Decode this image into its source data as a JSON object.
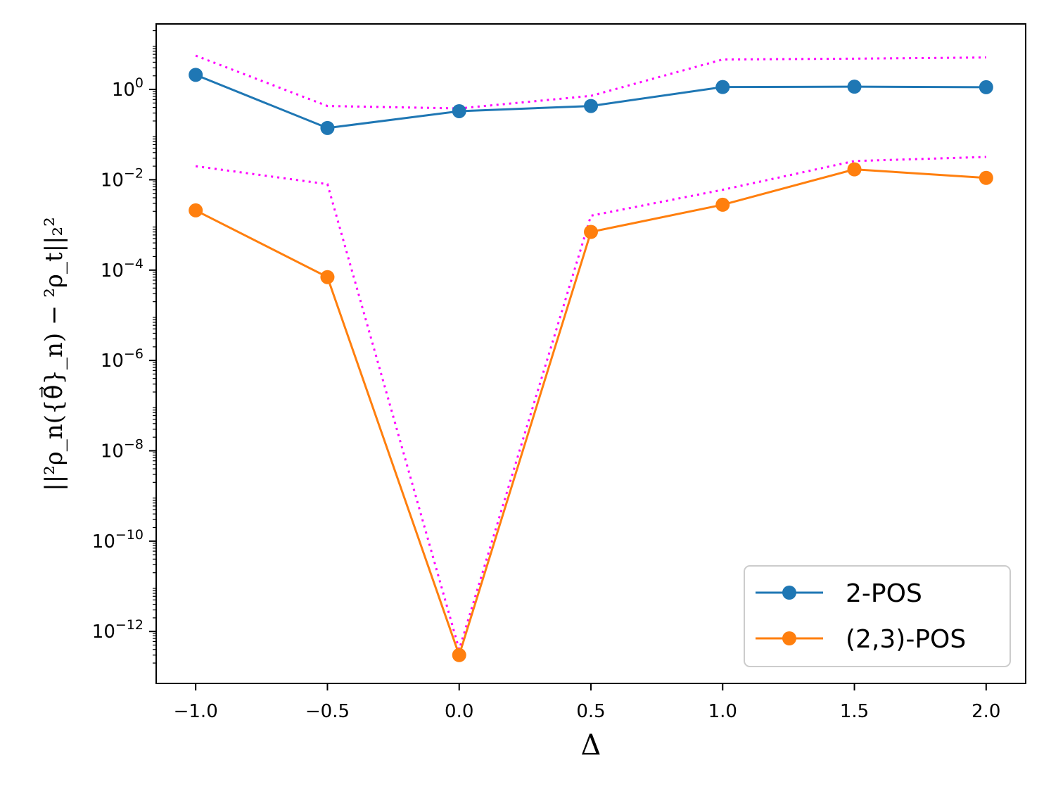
{
  "chart_data": {
    "type": "line",
    "title": "",
    "xlabel": "Δ",
    "ylabel": "||²ρ_n({θ⃗}_n) − ²ρ_t||₂²",
    "yscale": "log",
    "xlim": [
      -1.15,
      2.15
    ],
    "ylim_exp": [
      -13.15,
      1.45
    ],
    "x": [
      -1.0,
      -0.5,
      0.0,
      0.5,
      1.0,
      1.5,
      2.0
    ],
    "xticks": [
      -1.0,
      -0.5,
      0.0,
      0.5,
      1.0,
      1.5,
      2.0
    ],
    "xtick_labels": [
      "−1.0",
      "−0.5",
      "0.0",
      "0.5",
      "1.0",
      "1.5",
      "2.0"
    ],
    "yticks_exp": [
      0,
      -2,
      -4,
      -6,
      -8,
      -10,
      -12
    ],
    "ytick_labels": [
      "10",
      "10",
      "10",
      "10",
      "10",
      "10",
      "10"
    ],
    "ytick_exponents": [
      "0",
      "−2",
      "−4",
      "−6",
      "−8",
      "−10",
      "−12"
    ],
    "series": [
      {
        "name": "2-POS",
        "color": "#1f77b4",
        "values": [
          2.1,
          0.14,
          0.33,
          0.43,
          1.13,
          1.15,
          1.12
        ],
        "bound": [
          5.6,
          0.43,
          0.38,
          0.72,
          4.6,
          4.8,
          5.1
        ]
      },
      {
        "name": "(2,3)-POS",
        "color": "#ff7f0e",
        "values": [
          0.0021,
          7e-05,
          3e-13,
          0.0007,
          0.0028,
          0.017,
          0.011
        ],
        "bound": [
          0.02,
          0.008,
          4e-13,
          0.0016,
          0.006,
          0.026,
          0.032
        ]
      }
    ],
    "bound_color": "#ff00ff",
    "legend": {
      "location": "lower-right",
      "entries": [
        "2-POS",
        "(2,3)-POS"
      ]
    }
  }
}
